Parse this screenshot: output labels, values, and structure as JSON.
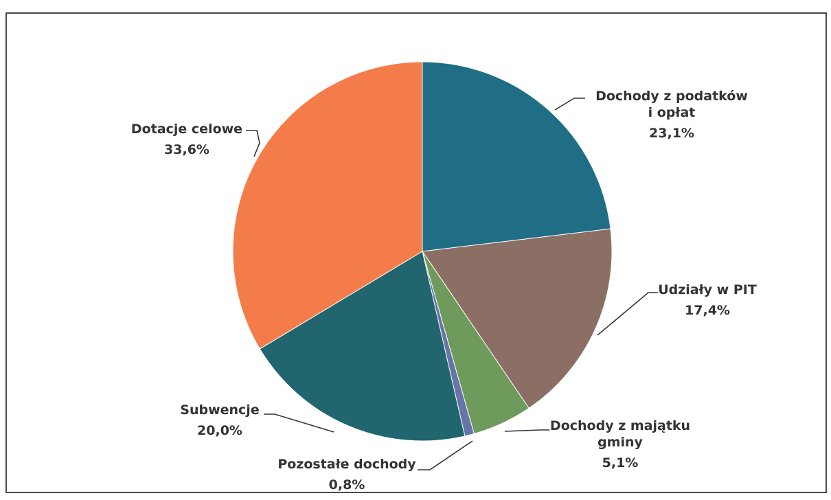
{
  "chart_data": {
    "type": "pie",
    "title": "",
    "slices": [
      {
        "label_lines": [
          "Dochody z podatków",
          "i opłat"
        ],
        "value_text": "23,1%",
        "value": 23.1,
        "color": "#1f6e86"
      },
      {
        "label_lines": [
          "Udziały w PIT"
        ],
        "value_text": "17,4%",
        "value": 17.4,
        "color": "#8b6f65"
      },
      {
        "label_lines": [
          "Dochody z majątku",
          "gminy"
        ],
        "value_text": "5,1%",
        "value": 5.1,
        "color": "#6e9a5c"
      },
      {
        "label_lines": [
          "Pozostałe dochody"
        ],
        "value_text": "0,8%",
        "value": 0.8,
        "color": "#6674a6"
      },
      {
        "label_lines": [
          "Subwencje"
        ],
        "value_text": "20,0%",
        "value": 20.0,
        "color": "#21656f"
      },
      {
        "label_lines": [
          "Dotacje celowe"
        ],
        "value_text": "33,6%",
        "value": 33.6,
        "color": "#f47c4a"
      }
    ]
  }
}
